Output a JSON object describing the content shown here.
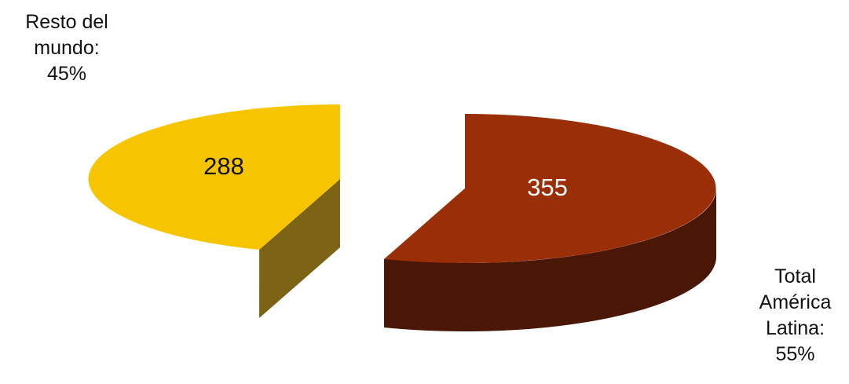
{
  "chart_data": {
    "type": "pie",
    "style": "3d-exploded",
    "slices": [
      {
        "label_lines": [
          "Resto del",
          "mundo:",
          "45%"
        ],
        "value": 288,
        "value_label": "288",
        "percent": 45,
        "top_color": "#F7C500",
        "side_color": "#7D6415",
        "text_color": "#111111"
      },
      {
        "label_lines": [
          "Total",
          "América",
          "Latina:",
          "55%"
        ],
        "value": 355,
        "value_label": "355",
        "percent": 55,
        "top_color": "#9A2E07",
        "side_color": "#4A1606",
        "text_color": "#ffffff"
      }
    ]
  }
}
